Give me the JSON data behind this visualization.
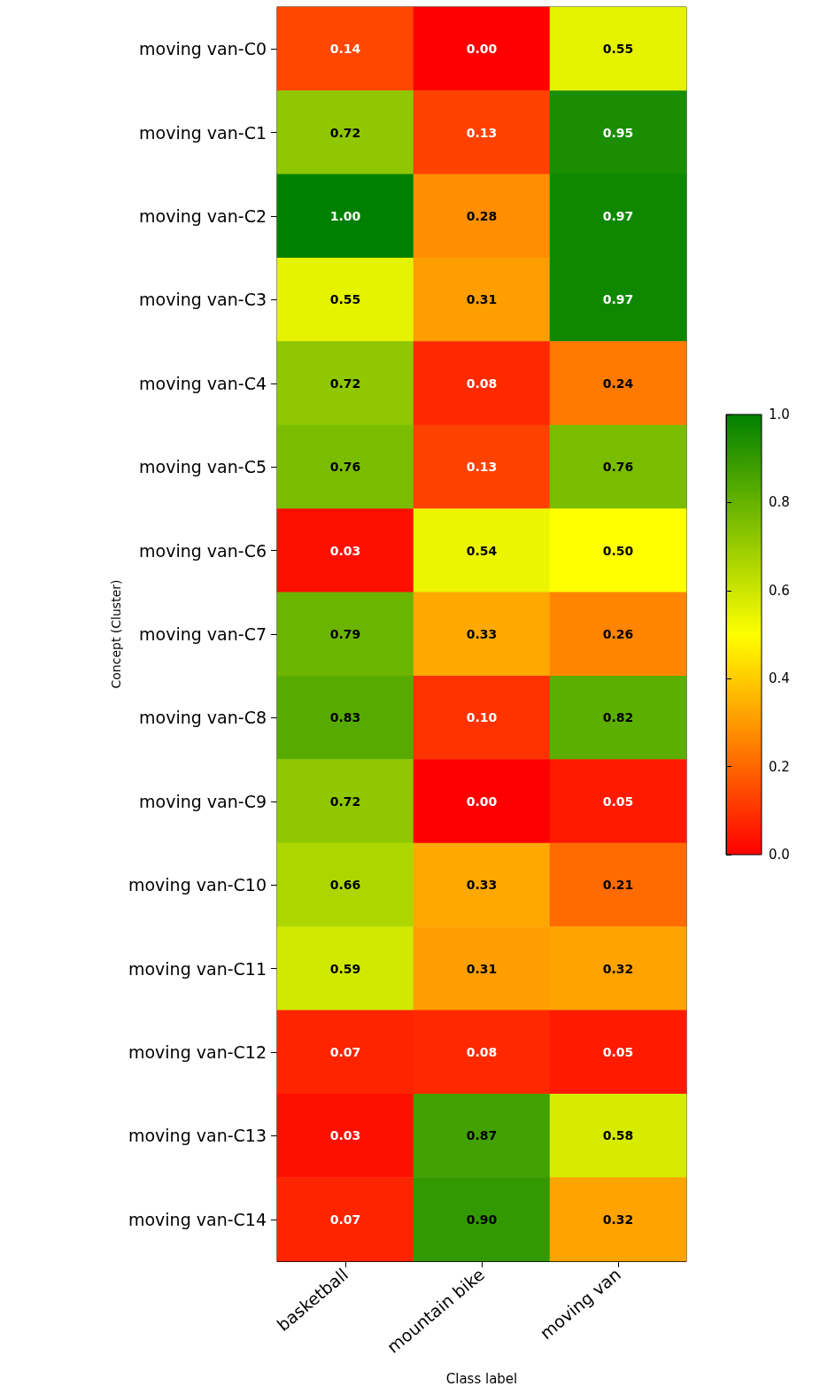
{
  "chart_data": {
    "type": "heatmap",
    "xlabel": "Class label",
    "ylabel": "Concept (Cluster)",
    "categories": [
      "basketball",
      "mountain bike",
      "moving van"
    ],
    "y_categories": [
      "moving van-C0",
      "moving van-C1",
      "moving van-C2",
      "moving van-C3",
      "moving van-C4",
      "moving van-C5",
      "moving van-C6",
      "moving van-C7",
      "moving van-C8",
      "moving van-C9",
      "moving van-C10",
      "moving van-C11",
      "moving van-C12",
      "moving van-C13",
      "moving van-C14"
    ],
    "cells": [
      [
        0.14,
        0.0,
        0.55
      ],
      [
        0.72,
        0.13,
        0.95
      ],
      [
        1.0,
        0.28,
        0.97
      ],
      [
        0.55,
        0.31,
        0.97
      ],
      [
        0.72,
        0.08,
        0.24
      ],
      [
        0.76,
        0.13,
        0.76
      ],
      [
        0.03,
        0.54,
        0.5
      ],
      [
        0.79,
        0.33,
        0.26
      ],
      [
        0.83,
        0.1,
        0.82
      ],
      [
        0.72,
        0.0,
        0.05
      ],
      [
        0.66,
        0.33,
        0.21
      ],
      [
        0.59,
        0.31,
        0.32
      ],
      [
        0.07,
        0.08,
        0.05
      ],
      [
        0.03,
        0.87,
        0.58
      ],
      [
        0.07,
        0.9,
        0.32
      ]
    ],
    "cell_labels": [
      [
        "0.14",
        "0.00",
        "0.55"
      ],
      [
        "0.72",
        "0.13",
        "0.95"
      ],
      [
        "1.00",
        "0.28",
        "0.97"
      ],
      [
        "0.55",
        "0.31",
        "0.97"
      ],
      [
        "0.72",
        "0.08",
        "0.24"
      ],
      [
        "0.76",
        "0.13",
        "0.76"
      ],
      [
        "0.03",
        "0.54",
        "0.50"
      ],
      [
        "0.79",
        "0.33",
        "0.26"
      ],
      [
        "0.83",
        "0.10",
        "0.82"
      ],
      [
        "0.72",
        "0.00",
        "0.05"
      ],
      [
        "0.66",
        "0.33",
        "0.21"
      ],
      [
        "0.59",
        "0.31",
        "0.32"
      ],
      [
        "0.07",
        "0.08",
        "0.05"
      ],
      [
        "0.03",
        "0.87",
        "0.58"
      ],
      [
        "0.07",
        "0.90",
        "0.32"
      ]
    ],
    "clim": [
      0,
      1
    ],
    "cticks": [
      {
        "value": 0,
        "label": "0.0"
      },
      {
        "value": 0.2,
        "label": "0.2"
      },
      {
        "value": 0.4,
        "label": "0.4"
      },
      {
        "value": 0.6,
        "label": "0.6"
      },
      {
        "value": 0.8,
        "label": "0.8"
      },
      {
        "value": 1,
        "label": "1.0"
      }
    ]
  }
}
